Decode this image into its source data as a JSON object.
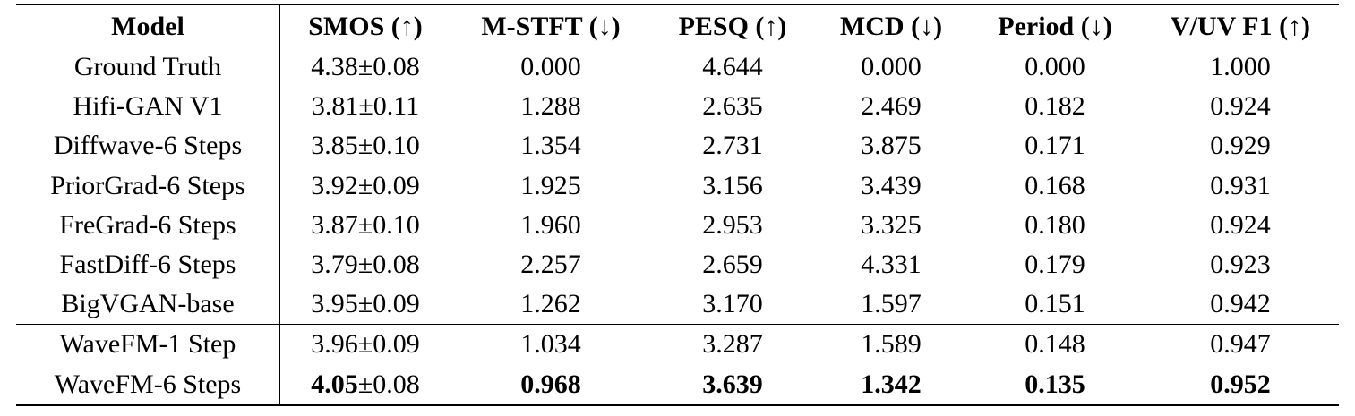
{
  "table": {
    "columns": [
      "Model",
      "SMOS (↑)",
      "M-STFT (↓)",
      "PESQ (↑)",
      "MCD (↓)",
      "Period (↓)",
      "V/UV F1 (↑)"
    ],
    "groups": [
      {
        "rows": [
          {
            "cells": [
              "Ground Truth",
              {
                "mean": "4.38",
                "ci": "±0.08"
              },
              "0.000",
              "4.644",
              "0.000",
              "0.000",
              "1.000"
            ],
            "bold": []
          },
          {
            "cells": [
              "Hifi-GAN V1",
              {
                "mean": "3.81",
                "ci": "±0.11"
              },
              "1.288",
              "2.635",
              "2.469",
              "0.182",
              "0.924"
            ],
            "bold": []
          },
          {
            "cells": [
              "Diffwave-6 Steps",
              {
                "mean": "3.85",
                "ci": "±0.10"
              },
              "1.354",
              "2.731",
              "3.875",
              "0.171",
              "0.929"
            ],
            "bold": []
          },
          {
            "cells": [
              "PriorGrad-6 Steps",
              {
                "mean": "3.92",
                "ci": "±0.09"
              },
              "1.925",
              "3.156",
              "3.439",
              "0.168",
              "0.931"
            ],
            "bold": []
          },
          {
            "cells": [
              "FreGrad-6 Steps",
              {
                "mean": "3.87",
                "ci": "±0.10"
              },
              "1.960",
              "2.953",
              "3.325",
              "0.180",
              "0.924"
            ],
            "bold": []
          },
          {
            "cells": [
              "FastDiff-6 Steps",
              {
                "mean": "3.79",
                "ci": "±0.08"
              },
              "2.257",
              "2.659",
              "4.331",
              "0.179",
              "0.923"
            ],
            "bold": []
          },
          {
            "cells": [
              "BigVGAN-base",
              {
                "mean": "3.95",
                "ci": "±0.09"
              },
              "1.262",
              "3.170",
              "1.597",
              "0.151",
              "0.942"
            ],
            "bold": []
          }
        ]
      },
      {
        "rows": [
          {
            "cells": [
              "WaveFM-1 Step",
              {
                "mean": "3.96",
                "ci": "±0.09"
              },
              "1.034",
              "3.287",
              "1.589",
              "0.148",
              "0.947"
            ],
            "bold": []
          },
          {
            "cells": [
              "WaveFM-6 Steps",
              {
                "mean": "4.05",
                "ci": "±0.08"
              },
              "0.968",
              "3.639",
              "1.342",
              "0.135",
              "0.952"
            ],
            "bold": [
              1,
              2,
              3,
              4,
              5,
              6
            ]
          }
        ]
      }
    ]
  }
}
